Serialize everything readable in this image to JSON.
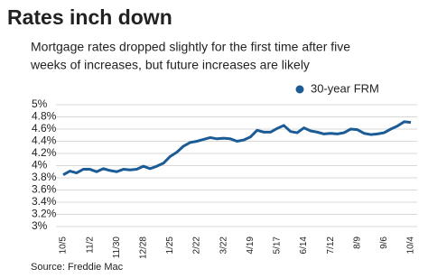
{
  "chart_data": {
    "type": "line",
    "title": "Rates inch down",
    "subtitle": [
      "Mortgage rates dropped slightly for the first time after five",
      "weeks of increases, but future increases are likely"
    ],
    "source": "Source: Freddie Mac",
    "categories": [
      "10/5",
      null,
      null,
      null,
      "11/2",
      null,
      null,
      null,
      "11/30",
      null,
      null,
      null,
      "12/28",
      null,
      null,
      null,
      "1/25",
      null,
      null,
      null,
      "2/22",
      null,
      null,
      null,
      "3/22",
      null,
      null,
      null,
      "4/19",
      null,
      null,
      null,
      "5/17",
      null,
      null,
      null,
      "6/14",
      null,
      null,
      null,
      "7/12",
      null,
      null,
      null,
      "8/9",
      null,
      null,
      null,
      "9/6",
      null,
      null,
      null,
      "10/4"
    ],
    "series": [
      {
        "name": "30-year FRM",
        "color": "#1b5c96",
        "values": [
          3.85,
          3.91,
          3.88,
          3.94,
          3.94,
          3.9,
          3.95,
          3.92,
          3.9,
          3.94,
          3.93,
          3.94,
          3.99,
          3.95,
          3.99,
          4.04,
          4.15,
          4.22,
          4.32,
          4.38,
          4.4,
          4.43,
          4.46,
          4.44,
          4.45,
          4.44,
          4.4,
          4.42,
          4.47,
          4.58,
          4.55,
          4.55,
          4.61,
          4.66,
          4.56,
          4.54,
          4.62,
          4.57,
          4.55,
          4.52,
          4.53,
          4.52,
          4.54,
          4.6,
          4.59,
          4.53,
          4.51,
          4.52,
          4.54,
          4.6,
          4.65,
          4.72,
          4.71
        ]
      }
    ],
    "ylim": [
      3,
      5
    ],
    "yticks": [
      {
        "value": 3,
        "label": "3%"
      },
      {
        "value": 3.2,
        "label": "3.2%"
      },
      {
        "value": 3.4,
        "label": "3.4%"
      },
      {
        "value": 3.6,
        "label": "3.6%"
      },
      {
        "value": 3.8,
        "label": "3.8%"
      },
      {
        "value": 4,
        "label": "4%"
      },
      {
        "value": 4.2,
        "label": "4.2%"
      },
      {
        "value": 4.4,
        "label": "4.4%"
      },
      {
        "value": 4.6,
        "label": "4.6%"
      },
      {
        "value": 4.8,
        "label": "4.8%"
      },
      {
        "value": 5,
        "label": "5%"
      }
    ],
    "grid": true,
    "legend": "top-right"
  }
}
